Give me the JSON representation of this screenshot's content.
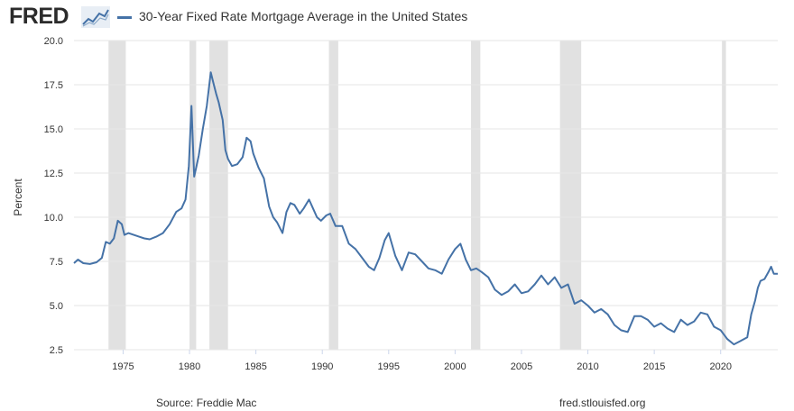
{
  "header": {
    "logo": "FRED",
    "logo_icon": "trend-chart-icon",
    "legend_label": "30-Year Fixed Rate Mortgage Average in the United States"
  },
  "footer": {
    "source": "Source: Freddie Mac",
    "site": "fred.stlouisfed.org"
  },
  "chart_data": {
    "type": "line",
    "title": "30-Year Fixed Rate Mortgage Average in the United States",
    "xlabel": "",
    "ylabel": "Percent",
    "xlim": [
      1971.3,
      2024.3
    ],
    "ylim": [
      2.5,
      20.0
    ],
    "yticks": [
      "2.5",
      "5.0",
      "7.5",
      "10.0",
      "12.5",
      "15.0",
      "17.5",
      "20.0"
    ],
    "xticks": [
      "1975",
      "1980",
      "1985",
      "1990",
      "1995",
      "2000",
      "2005",
      "2010",
      "2015",
      "2020"
    ],
    "grid": "horizontal",
    "line_color": "#4572a7",
    "recession_color": "#e1e1e1",
    "recessions": [
      [
        1973.9,
        1975.2
      ],
      [
        1980.0,
        1980.5
      ],
      [
        1981.5,
        1982.9
      ],
      [
        1990.5,
        1991.2
      ],
      [
        2001.2,
        2001.9
      ],
      [
        2007.9,
        2009.5
      ],
      [
        2020.1,
        2020.4
      ]
    ],
    "series": [
      {
        "name": "30-Year Fixed Rate Mortgage Average in the United States",
        "x": [
          1971.3,
          1971.6,
          1972.0,
          1972.5,
          1973.0,
          1973.4,
          1973.7,
          1974.0,
          1974.3,
          1974.6,
          1974.9,
          1975.1,
          1975.4,
          1975.8,
          1976.2,
          1976.6,
          1977.0,
          1977.5,
          1978.0,
          1978.5,
          1979.0,
          1979.4,
          1979.7,
          1979.95,
          1980.15,
          1980.35,
          1980.5,
          1980.7,
          1981.0,
          1981.3,
          1981.6,
          1981.8,
          1982.0,
          1982.2,
          1982.5,
          1982.7,
          1982.9,
          1983.2,
          1983.6,
          1984.0,
          1984.3,
          1984.6,
          1984.8,
          1985.2,
          1985.6,
          1986.0,
          1986.3,
          1986.6,
          1987.0,
          1987.3,
          1987.6,
          1987.9,
          1988.3,
          1988.6,
          1989.0,
          1989.3,
          1989.6,
          1989.9,
          1990.3,
          1990.6,
          1991.0,
          1991.5,
          1992.0,
          1992.5,
          1993.0,
          1993.5,
          1993.9,
          1994.3,
          1994.7,
          1995.0,
          1995.5,
          1996.0,
          1996.5,
          1997.0,
          1997.5,
          1998.0,
          1998.5,
          1999.0,
          1999.5,
          2000.0,
          2000.4,
          2000.8,
          2001.2,
          2001.6,
          2002.0,
          2002.5,
          2003.0,
          2003.5,
          2004.0,
          2004.5,
          2005.0,
          2005.5,
          2006.0,
          2006.5,
          2007.0,
          2007.5,
          2008.0,
          2008.5,
          2009.0,
          2009.5,
          2010.0,
          2010.5,
          2011.0,
          2011.5,
          2012.0,
          2012.5,
          2013.0,
          2013.5,
          2014.0,
          2014.5,
          2015.0,
          2015.5,
          2016.0,
          2016.5,
          2017.0,
          2017.5,
          2018.0,
          2018.5,
          2019.0,
          2019.5,
          2020.0,
          2020.5,
          2021.0,
          2021.5,
          2022.0,
          2022.3,
          2022.6,
          2022.8,
          2023.0,
          2023.3,
          2023.6,
          2023.8,
          2024.0,
          2024.3
        ],
        "values": [
          7.4,
          7.6,
          7.4,
          7.35,
          7.45,
          7.7,
          8.6,
          8.5,
          8.8,
          9.8,
          9.6,
          9.0,
          9.1,
          9.0,
          8.9,
          8.8,
          8.75,
          8.9,
          9.1,
          9.6,
          10.3,
          10.5,
          11.0,
          12.9,
          16.3,
          12.3,
          12.8,
          13.5,
          15.0,
          16.3,
          18.2,
          17.6,
          17.0,
          16.5,
          15.5,
          13.8,
          13.3,
          12.9,
          13.0,
          13.4,
          14.5,
          14.3,
          13.6,
          12.8,
          12.2,
          10.6,
          10.0,
          9.7,
          9.1,
          10.3,
          10.8,
          10.7,
          10.2,
          10.5,
          11.0,
          10.5,
          10.0,
          9.8,
          10.1,
          10.2,
          9.5,
          9.5,
          8.5,
          8.2,
          7.7,
          7.2,
          7.0,
          7.7,
          8.7,
          9.1,
          7.8,
          7.0,
          8.0,
          7.9,
          7.5,
          7.1,
          7.0,
          6.8,
          7.6,
          8.2,
          8.5,
          7.6,
          7.0,
          7.1,
          6.9,
          6.6,
          5.9,
          5.6,
          5.8,
          6.2,
          5.7,
          5.8,
          6.2,
          6.7,
          6.2,
          6.6,
          6.0,
          6.2,
          5.1,
          5.3,
          5.0,
          4.6,
          4.8,
          4.5,
          3.9,
          3.6,
          3.5,
          4.4,
          4.4,
          4.2,
          3.8,
          4.0,
          3.7,
          3.5,
          4.2,
          3.9,
          4.1,
          4.6,
          4.5,
          3.8,
          3.6,
          3.1,
          2.8,
          3.0,
          3.2,
          4.5,
          5.3,
          6.0,
          6.4,
          6.5,
          6.9,
          7.2,
          6.8,
          6.8
        ]
      }
    ]
  }
}
